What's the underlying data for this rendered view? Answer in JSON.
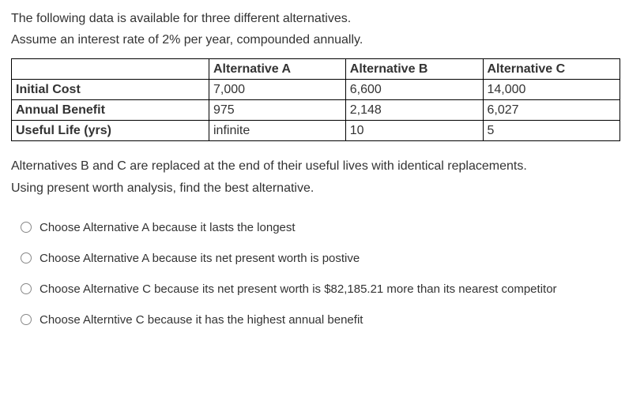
{
  "intro": {
    "line1": "The following data is available for three different alternatives.",
    "line2": "Assume an interest rate of 2% per year, compounded annually."
  },
  "table": {
    "headers": {
      "blank": "",
      "colA": "Alternative A",
      "colB": "Alternative B",
      "colC": "Alternative C"
    },
    "rows": {
      "initial_cost": {
        "label": "Initial Cost",
        "a": "7,000",
        "b": "6,600",
        "c": "14,000"
      },
      "annual_benefit": {
        "label": "Annual Benefit",
        "a": "975",
        "b": "2,148",
        "c": "6,027"
      },
      "useful_life": {
        "label": "Useful Life (yrs)",
        "a": "infinite",
        "b": "10",
        "c": "5"
      }
    },
    "col_widths": {
      "row_label": "250px",
      "data_col": "auto"
    }
  },
  "mid": {
    "line1": "Alternatives B and C are replaced at the end of their useful lives with identical replacements.",
    "line2": "Using present worth analysis, find the best alternative."
  },
  "options": {
    "opt1": "Choose Alternative A because it lasts the longest",
    "opt2": "Choose Alternative A because its net present worth is postive",
    "opt3": "Choose Alternative C because its net present worth is $82,185.21 more than its nearest competitor",
    "opt4": "Choose Alterntive C because it has the highest annual benefit"
  },
  "colors": {
    "text": "#333333",
    "border": "#000000",
    "radio_border": "#888888",
    "background": "#ffffff"
  },
  "typography": {
    "body_fontsize": 16,
    "option_fontsize": 15,
    "font_family": "Arial"
  }
}
